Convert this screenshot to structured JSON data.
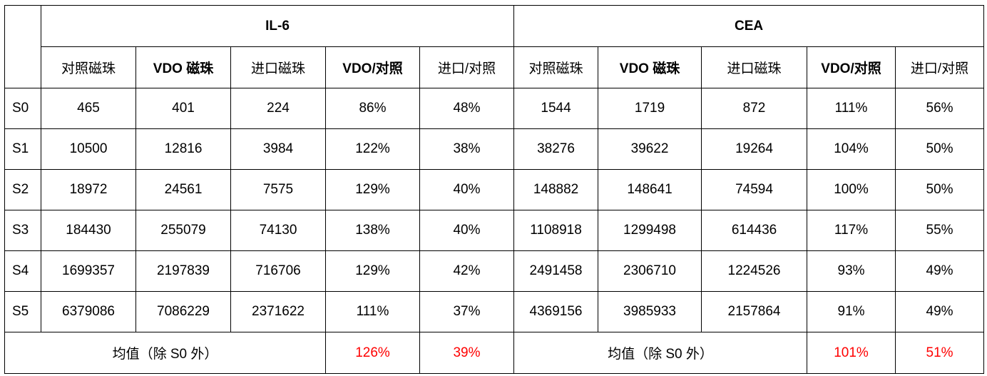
{
  "groups": [
    {
      "title": "IL-6"
    },
    {
      "title": "CEA"
    }
  ],
  "column_headers": [
    "对照磁珠",
    "VDO  磁珠",
    "进口磁珠",
    "VDO/对照",
    "进口/对照"
  ],
  "rows": [
    {
      "label": "S0",
      "il6": [
        "465",
        "401",
        "224",
        "86%",
        "48%"
      ],
      "cea": [
        "1544",
        "1719",
        "872",
        "111%",
        "56%"
      ]
    },
    {
      "label": "S1",
      "il6": [
        "10500",
        "12816",
        "3984",
        "122%",
        "38%"
      ],
      "cea": [
        "38276",
        "39622",
        "19264",
        "104%",
        "50%"
      ]
    },
    {
      "label": "S2",
      "il6": [
        "18972",
        "24561",
        "7575",
        "129%",
        "40%"
      ],
      "cea": [
        "148882",
        "148641",
        "74594",
        "100%",
        "50%"
      ]
    },
    {
      "label": "S3",
      "il6": [
        "184430",
        "255079",
        "74130",
        "138%",
        "40%"
      ],
      "cea": [
        "1108918",
        "1299498",
        "614436",
        "117%",
        "55%"
      ]
    },
    {
      "label": "S4",
      "il6": [
        "1699357",
        "2197839",
        "716706",
        "129%",
        "42%"
      ],
      "cea": [
        "2491458",
        "2306710",
        "1224526",
        "93%",
        "49%"
      ]
    },
    {
      "label": "S5",
      "il6": [
        "6379086",
        "7086229",
        "2371622",
        "111%",
        "37%"
      ],
      "cea": [
        "4369156",
        "3985933",
        "2157864",
        "91%",
        "49%"
      ]
    }
  ],
  "average": {
    "label": "均值（除 S0 外）",
    "il6": {
      "vdo_ratio": "126%",
      "import_ratio": "39%"
    },
    "cea": {
      "vdo_ratio": "101%",
      "import_ratio": "51%"
    }
  },
  "colors": {
    "highlight": "#ff0000",
    "border": "#000000"
  }
}
